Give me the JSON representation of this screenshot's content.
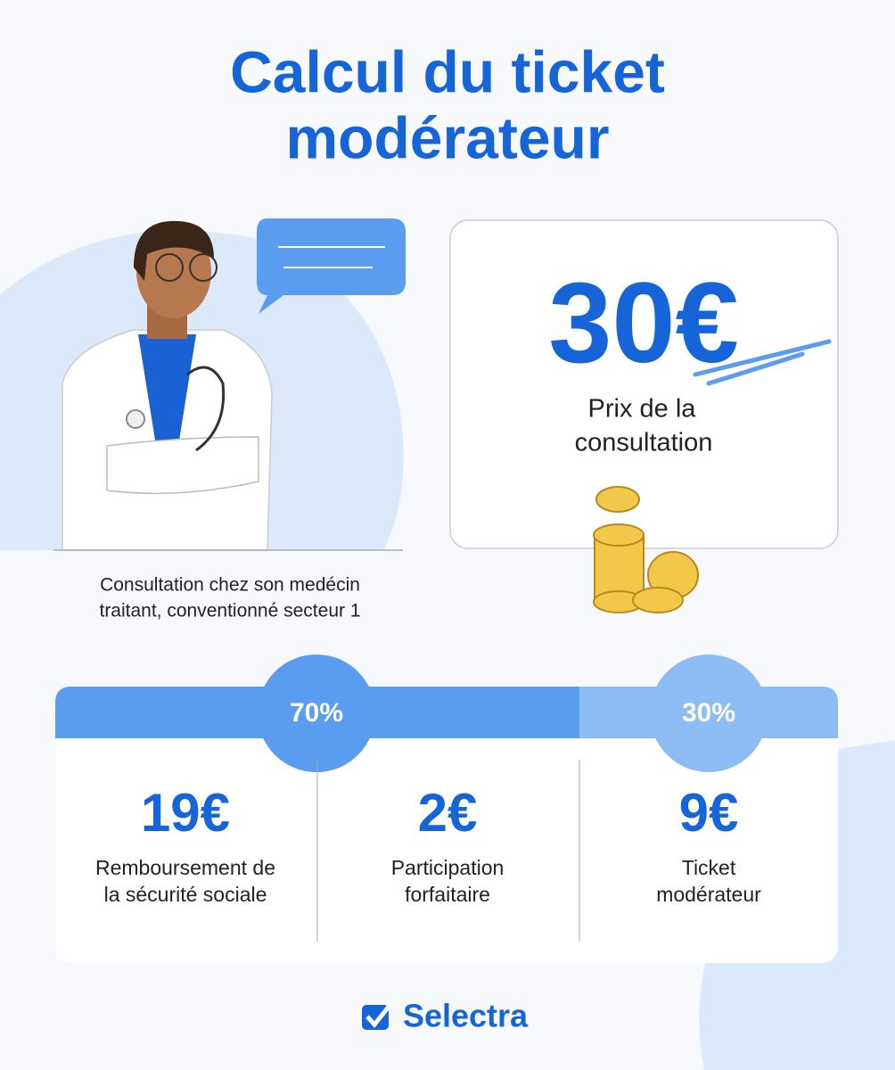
{
  "header": {
    "title_lines": [
      "Calcul du ticket",
      "modérateur"
    ]
  },
  "doctor": {
    "caption_lines": [
      "Consultation chez son medécin",
      "traitant, conventionné secteur 1"
    ]
  },
  "price_card": {
    "amount": "30€",
    "label_lines": [
      "Prix de la",
      "consultation"
    ]
  },
  "breakdown": {
    "shares": [
      "70%",
      "30%"
    ],
    "items": [
      {
        "amount": "19€",
        "label_lines": [
          "Remboursement de",
          "la sécurité sociale"
        ]
      },
      {
        "amount": "2€",
        "label_lines": [
          "Participation",
          "forfaitaire"
        ]
      },
      {
        "amount": "9€",
        "label_lines": [
          "Ticket",
          "modérateur"
        ]
      }
    ]
  },
  "footer": {
    "brand": "Selectra"
  }
}
